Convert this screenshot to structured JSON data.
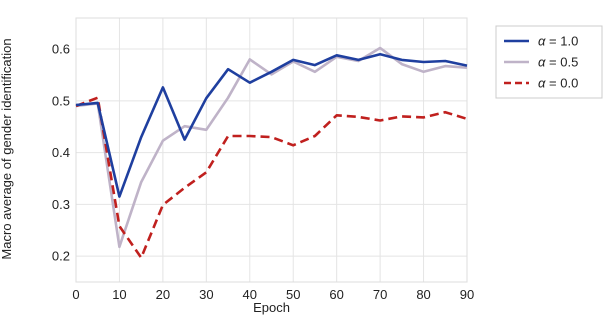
{
  "chart_data": {
    "type": "line",
    "xlabel": "Epoch",
    "ylabel": "Macro average of gender identification",
    "xlim": [
      0,
      90
    ],
    "ylim": [
      0.15,
      0.66
    ],
    "xticks": [
      0,
      10,
      20,
      30,
      40,
      50,
      60,
      70,
      80,
      90
    ],
    "yticks": [
      0.2,
      0.3,
      0.4,
      0.5,
      0.6
    ],
    "grid": true,
    "legend_position": "top-right-outside",
    "x": [
      0,
      5,
      10,
      15,
      20,
      25,
      30,
      35,
      40,
      45,
      50,
      55,
      60,
      65,
      70,
      75,
      80,
      85,
      90
    ],
    "series": [
      {
        "name": "α = 1.0",
        "symbol": "α",
        "value_text": " = 1.0",
        "color": "#1f3f9f",
        "dash": "solid",
        "values": [
          0.492,
          0.496,
          0.315,
          0.43,
          0.526,
          0.425,
          0.505,
          0.561,
          0.535,
          0.556,
          0.579,
          0.569,
          0.588,
          0.579,
          0.59,
          0.579,
          0.575,
          0.577,
          0.568
        ]
      },
      {
        "name": "α = 0.5",
        "symbol": "α",
        "value_text": " = 0.5",
        "color": "#bfb3c8",
        "dash": "solid",
        "values": [
          0.49,
          0.495,
          0.218,
          0.343,
          0.423,
          0.451,
          0.444,
          0.506,
          0.58,
          0.551,
          0.576,
          0.556,
          0.585,
          0.577,
          0.602,
          0.571,
          0.556,
          0.567,
          0.564
        ]
      },
      {
        "name": "α = 0.0",
        "symbol": "α",
        "value_text": " = 0.0",
        "color": "#c0201e",
        "dash": "dashed",
        "values": [
          0.49,
          0.506,
          0.258,
          0.197,
          0.299,
          0.332,
          0.362,
          0.432,
          0.432,
          0.43,
          0.414,
          0.432,
          0.472,
          0.469,
          0.462,
          0.47,
          0.468,
          0.478,
          0.465
        ]
      }
    ]
  }
}
